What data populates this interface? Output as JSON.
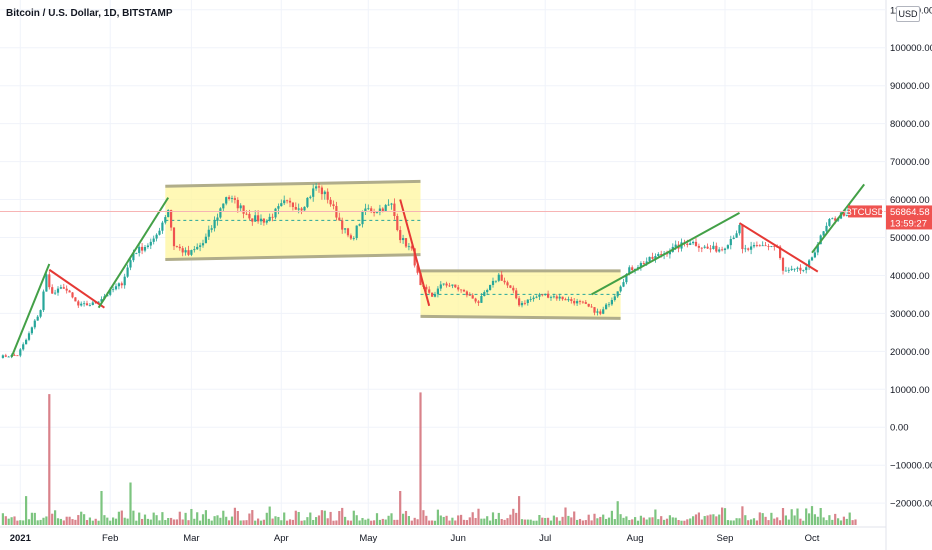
{
  "header": {
    "title": "Bitcoin / U.S. Dollar, 1D, BITSTAMP",
    "currency_badge": "USD"
  },
  "price_tag": {
    "symbol": "BTCUSD",
    "price": "56864.58",
    "countdown": "13:59:27",
    "value": 56864.58,
    "color": "#ef5350"
  },
  "colors": {
    "up": "#26a69a",
    "down": "#ef5350",
    "vol_up": "#7cc47f",
    "vol_down": "#d9828a",
    "trend_up": "#43a047",
    "trend_down": "#e53935",
    "zone_fill": "#fff59d",
    "zone_edge": "#b0ad8a",
    "mid_dash": "#26a69a",
    "grid": "#f0f3fa"
  },
  "chart_data": {
    "type": "candlestick",
    "title": "Bitcoin / U.S. Dollar, 1D, BITSTAMP",
    "y_tick_labels": [
      "110000.00",
      "100000.00",
      "90000.00",
      "80000.00",
      "70000.00",
      "60000.00",
      "50000.00",
      "40000.00",
      "30000.00",
      "20000.00",
      "10000.00",
      "0.00",
      "−10000.00",
      "−20000.00"
    ],
    "y_tick_values": [
      110000,
      100000,
      90000,
      80000,
      70000,
      60000,
      50000,
      40000,
      30000,
      20000,
      10000,
      0,
      -10000,
      -20000
    ],
    "x_tick_labels": [
      "2021",
      "Feb",
      "Mar",
      "Apr",
      "May",
      "Jun",
      "Jul",
      "Aug",
      "Sep",
      "Oct"
    ],
    "x_tick_dates": [
      "2021-01-01",
      "2021-02-01",
      "2021-03-01",
      "2021-04-01",
      "2021-05-01",
      "2021-06-01",
      "2021-07-01",
      "2021-08-01",
      "2021-09-01",
      "2021-10-01"
    ],
    "x_range": [
      "2020-12-25",
      "2021-10-21"
    ],
    "y_range": [
      -25000,
      111000
    ],
    "grid": true,
    "close_path": [
      [
        "2020-12-25",
        18600
      ],
      [
        "2020-12-31",
        19000
      ],
      [
        "2021-01-03",
        23000
      ],
      [
        "2021-01-08",
        31000
      ],
      [
        "2021-01-10",
        40000
      ],
      [
        "2021-01-12",
        35000
      ],
      [
        "2021-01-16",
        37000
      ],
      [
        "2021-01-21",
        32000
      ],
      [
        "2021-01-26",
        32500
      ],
      [
        "2021-01-29",
        34000
      ],
      [
        "2021-02-05",
        38000
      ],
      [
        "2021-02-09",
        46000
      ],
      [
        "2021-02-16",
        49000
      ],
      [
        "2021-02-21",
        57500
      ],
      [
        "2021-02-23",
        48000
      ],
      [
        "2021-02-28",
        45500
      ],
      [
        "2021-03-05",
        48500
      ],
      [
        "2021-03-09",
        54000
      ],
      [
        "2021-03-13",
        61000
      ],
      [
        "2021-03-17",
        58500
      ],
      [
        "2021-03-22",
        55000
      ],
      [
        "2021-03-27",
        54500
      ],
      [
        "2021-04-02",
        59000
      ],
      [
        "2021-04-08",
        58000
      ],
      [
        "2021-04-13",
        63500
      ],
      [
        "2021-04-17",
        60500
      ],
      [
        "2021-04-22",
        53000
      ],
      [
        "2021-04-25",
        49000
      ],
      [
        "2021-04-30",
        57500
      ],
      [
        "2021-05-03",
        57000
      ],
      [
        "2021-05-09",
        58500
      ],
      [
        "2021-05-12",
        50000
      ],
      [
        "2021-05-16",
        46500
      ],
      [
        "2021-05-19",
        37000
      ],
      [
        "2021-05-23",
        34500
      ],
      [
        "2021-05-27",
        38000
      ],
      [
        "2021-06-01",
        36500
      ],
      [
        "2021-06-08",
        33000
      ],
      [
        "2021-06-15",
        40000
      ],
      [
        "2021-06-20",
        35500
      ],
      [
        "2021-06-22",
        32500
      ],
      [
        "2021-06-30",
        35000
      ],
      [
        "2021-07-07",
        34000
      ],
      [
        "2021-07-14",
        32500
      ],
      [
        "2021-07-20",
        29800
      ],
      [
        "2021-07-25",
        35000
      ],
      [
        "2021-07-30",
        41500
      ],
      [
        "2021-08-07",
        44500
      ],
      [
        "2021-08-14",
        47000
      ],
      [
        "2021-08-20",
        49000
      ],
      [
        "2021-08-26",
        47000
      ],
      [
        "2021-08-31",
        47000
      ],
      [
        "2021-09-06",
        52500
      ],
      [
        "2021-09-07",
        46500
      ],
      [
        "2021-09-15",
        48000
      ],
      [
        "2021-09-19",
        47500
      ],
      [
        "2021-09-21",
        41000
      ],
      [
        "2021-09-29",
        41500
      ],
      [
        "2021-10-03",
        48500
      ],
      [
        "2021-10-07",
        54000
      ],
      [
        "2021-10-14",
        57500
      ],
      [
        "2021-10-16",
        56864
      ]
    ],
    "volume_markers": [
      [
        "2021-01-11",
        7.7
      ],
      [
        "2021-01-03",
        1.7
      ],
      [
        "2021-01-29",
        2.0
      ],
      [
        "2021-02-08",
        2.5
      ],
      [
        "2021-05-19",
        7.8
      ],
      [
        "2021-05-12",
        2.0
      ],
      [
        "2021-06-22",
        1.7
      ],
      [
        "2021-07-26",
        1.4
      ],
      [
        "2021-09-07",
        1.1
      ],
      [
        "2021-09-21",
        1.0
      ],
      [
        "2021-10-04",
        1.0
      ]
    ],
    "annotations": {
      "rect_upper": {
        "x1": "2021-02-20",
        "x2": "2021-05-19",
        "y_top_start": 63500,
        "y_top_end": 64800,
        "y_bot_start": 44200,
        "y_bot_end": 45500
      },
      "rect_lower": {
        "x1": "2021-05-19",
        "x2": "2021-07-27",
        "y_top_start": 41200,
        "y_top_end": 41200,
        "y_bot_start": 29200,
        "y_bot_end": 28700
      },
      "mid_upper": {
        "x1": "2021-02-20",
        "x2": "2021-05-19",
        "y": 54500
      },
      "mid_lower": {
        "x1": "2021-05-19",
        "x2": "2021-07-27",
        "y": 35000
      },
      "trend_lines": [
        {
          "x1": "2020-12-29",
          "y1": 18500,
          "x2": "2021-01-11",
          "y2": 43000,
          "dir": "up"
        },
        {
          "x1": "2021-01-11",
          "y1": 41500,
          "x2": "2021-01-30",
          "y2": 31500,
          "dir": "down"
        },
        {
          "x1": "2021-01-28",
          "y1": 31500,
          "x2": "2021-02-21",
          "y2": 60500,
          "dir": "up"
        },
        {
          "x1": "2021-05-12",
          "y1": 60000,
          "x2": "2021-05-22",
          "y2": 32000,
          "dir": "down"
        },
        {
          "x1": "2021-07-17",
          "y1": 35000,
          "x2": "2021-09-06",
          "y2": 56500,
          "dir": "up"
        },
        {
          "x1": "2021-09-06",
          "y1": 53800,
          "x2": "2021-10-03",
          "y2": 41000,
          "dir": "down"
        },
        {
          "x1": "2021-10-01",
          "y1": 46000,
          "x2": "2021-10-19",
          "y2": 64000,
          "dir": "up"
        }
      ]
    }
  }
}
